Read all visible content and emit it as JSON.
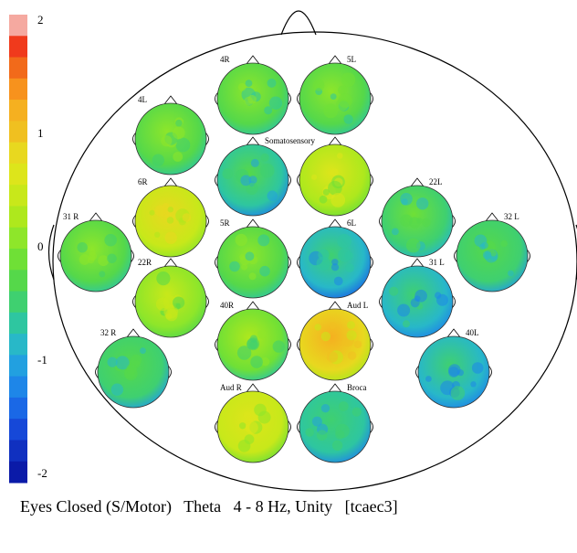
{
  "colorbar": {
    "ticks": [
      {
        "label": "2",
        "value": 2
      },
      {
        "label": "1",
        "value": 1
      },
      {
        "label": "0",
        "value": 0
      },
      {
        "label": "-1",
        "value": -1
      },
      {
        "label": "-2",
        "value": -2
      }
    ],
    "range": [
      -2,
      2
    ],
    "colors": [
      "#f5a9a0",
      "#f03a1c",
      "#f26a1a",
      "#f7921d",
      "#f5b020",
      "#f0c020",
      "#e8d81f",
      "#dde51b",
      "#c8e81a",
      "#aee81d",
      "#8ee62a",
      "#6fe036",
      "#55d84a",
      "#3fd070",
      "#2ec6a0",
      "#28b8c8",
      "#22a0e0",
      "#1e86e8",
      "#1a68e6",
      "#1648d8",
      "#1030c0",
      "#0a1aa8"
    ]
  },
  "maps": [
    {
      "id": "4R",
      "label": "4R",
      "value": -0.25
    },
    {
      "id": "5L",
      "label": "5L",
      "value": -0.3
    },
    {
      "id": "4L",
      "label": "4L",
      "value": -0.2
    },
    {
      "id": "somatosensory",
      "label": "Somatosensory",
      "value": -0.7
    },
    {
      "id": "6R-top",
      "label": "",
      "value": 0.35
    },
    {
      "id": "6R",
      "label": "6R",
      "value": 0.55
    },
    {
      "id": "22L",
      "label": "22L",
      "value": -0.5
    },
    {
      "id": "31R",
      "label": "31 R",
      "value": -0.2
    },
    {
      "id": "5R",
      "label": "5R",
      "value": -0.25
    },
    {
      "id": "6L",
      "label": "6L",
      "value": -0.9
    },
    {
      "id": "32L",
      "label": "32 L",
      "value": -0.55
    },
    {
      "id": "22R",
      "label": "22R",
      "value": 0.15
    },
    {
      "id": "31L",
      "label": "31 L",
      "value": -0.85
    },
    {
      "id": "32R",
      "label": "32 R",
      "value": -0.55
    },
    {
      "id": "40R",
      "label": "40R",
      "value": -0.15
    },
    {
      "id": "AudL",
      "label": "Aud L",
      "value": 0.8
    },
    {
      "id": "40L",
      "label": "40L",
      "value": -0.8
    },
    {
      "id": "AudR",
      "label": "Aud R",
      "value": 0.4
    },
    {
      "id": "Broca",
      "label": "Broca",
      "value": -0.75
    }
  ],
  "caption": "Eyes Closed (S/Motor)   Theta   4 - 8 Hz, Unity   [tcaec3]"
}
